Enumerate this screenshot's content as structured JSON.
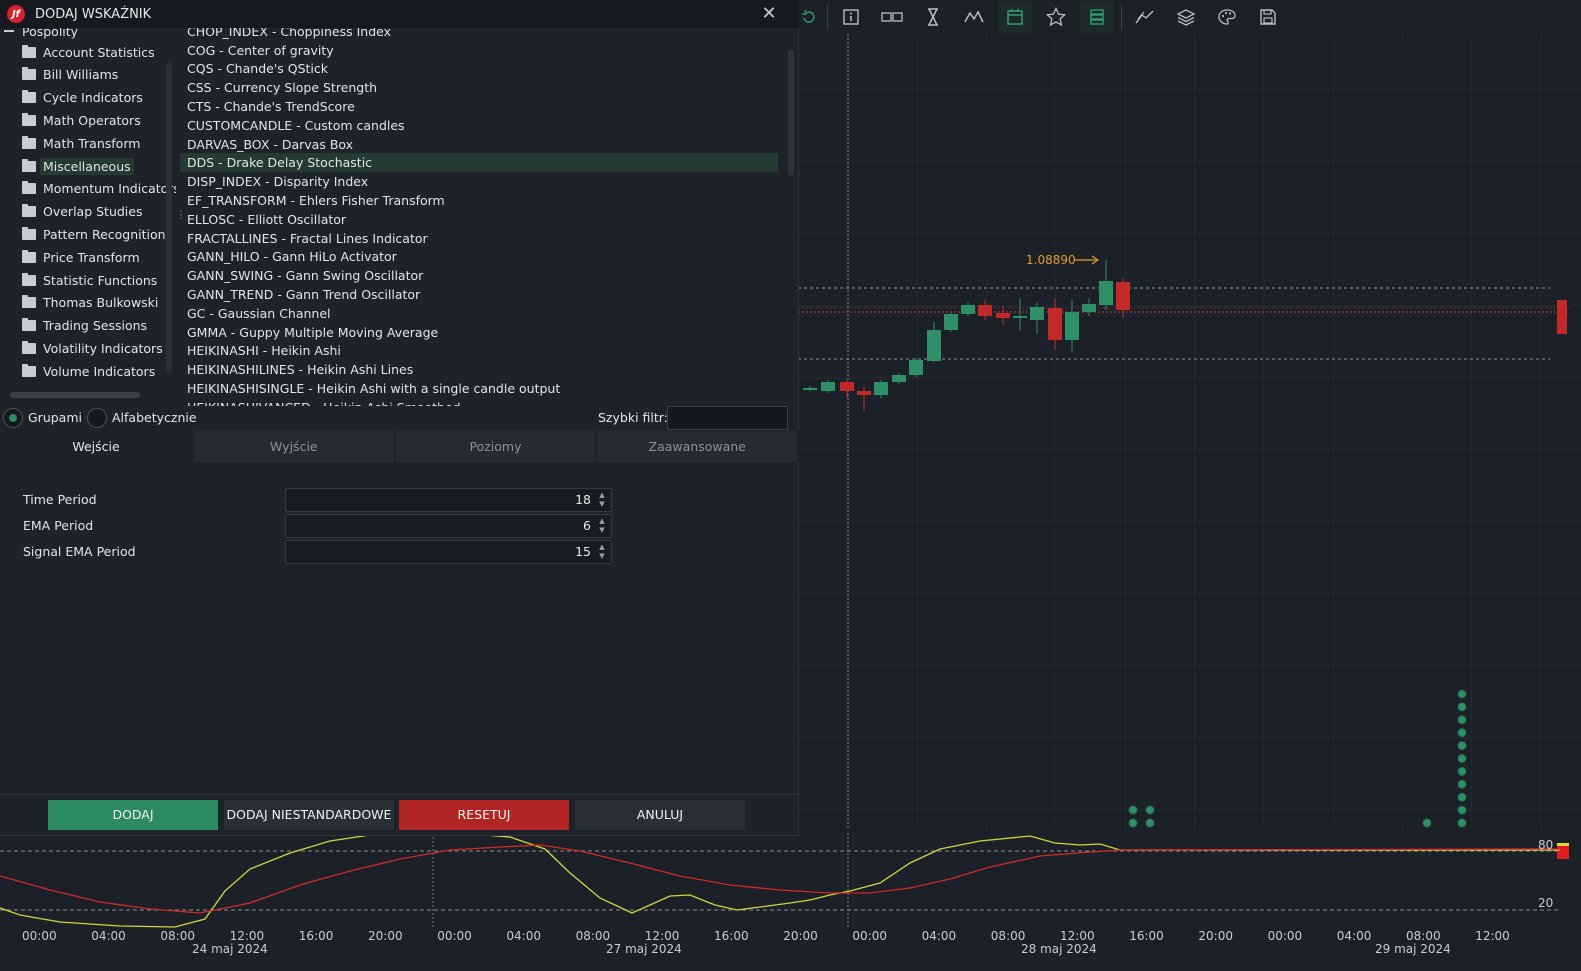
{
  "dialog": {
    "title": "DODAJ WSKAŹNIK",
    "close_icon": "close-icon",
    "groups_partial_top": "Pospolity",
    "groups": [
      "Account Statistics",
      "Bill Williams",
      "Cycle Indicators",
      "Math Operators",
      "Math Transform",
      "Miscellaneous",
      "Momentum Indicators",
      "Overlap Studies",
      "Pattern Recognition",
      "Price Transform",
      "Statistic Functions",
      "Thomas Bulkowski",
      "Trading Sessions",
      "Volatility Indicators",
      "Volume Indicators"
    ],
    "selected_group": "Miscellaneous",
    "indicators_partial_top": "CHOP_INDEX - Choppiness Index",
    "indicators": [
      "COG - Center of gravity",
      "CQS - Chande's QStick",
      "CSS - Currency Slope Strength",
      "CTS - Chande's TrendScore",
      "CUSTOMCANDLE - Custom candles",
      "DARVAS_BOX - Darvas Box",
      "DDS - Drake Delay Stochastic",
      "DISP_INDEX - Disparity Index",
      "EF_TRANSFORM - Ehlers Fisher Transform",
      "ELLOSC - Elliott Oscillator",
      "FRACTALLINES - Fractal Lines Indicator",
      "GANN_HILO - Gann HiLo Activator",
      "GANN_SWING - Gann Swing Oscillator",
      "GANN_TREND - Gann Trend Oscillator",
      "GC - Gaussian Channel",
      "GMMA - Guppy Multiple Moving Average",
      "HEIKINASHI - Heikin Ashi",
      "HEIKINASHILINES - Heikin Ashi Lines",
      "HEIKINASHISINGLE - Heikin Ashi with a single candle output"
    ],
    "indicators_partial_bottom": "HEIKINASHIVANCED - Heikin Ashi Smoothed",
    "selected_indicator": "DDS - Drake Delay Stochastic",
    "radio_groups": "Grupami",
    "radio_alpha": "Alfabetycznie",
    "radio_selected": "Grupami",
    "quick_filter_label": "Szybki filtr:",
    "quick_filter_value": "",
    "tabs": [
      "Wejście",
      "Wyjście",
      "Poziomy",
      "Zaawansowane"
    ],
    "active_tab": "Wejście",
    "params": [
      {
        "label": "Time Period",
        "value": "18"
      },
      {
        "label": "EMA Period",
        "value": "6"
      },
      {
        "label": "Signal EMA Period",
        "value": "15"
      }
    ],
    "buttons": {
      "add": "DODAJ",
      "add_custom": "DODAJ NIESTANDARDOWE",
      "reset": "RESETUJ",
      "cancel": "ANULUJ"
    }
  },
  "toolbar": {
    "icons": [
      "refresh-icon",
      "info-icon",
      "tag-icon",
      "hourglass-icon",
      "indicator-icon",
      "calendar-icon",
      "star-icon",
      "list-icon",
      "trend-tools-icon",
      "layers-icon",
      "palette-icon",
      "save-icon"
    ]
  },
  "chart": {
    "price_marker": "1.08890",
    "osc_level_high": "80",
    "osc_level_low": "20",
    "time_labels": [
      "00:00",
      "04:00",
      "08:00",
      "12:00",
      "16:00",
      "20:00",
      "00:00",
      "04:00",
      "08:00",
      "12:00",
      "16:00",
      "20:00",
      "00:00",
      "04:00",
      "08:00",
      "12:00",
      "16:00",
      "20:00",
      "00:00",
      "04:00",
      "08:00",
      "12:00"
    ],
    "date_labels": [
      "24 maj 2024",
      "27 maj 2024",
      "28 maj 2024",
      "29 maj 2024"
    ],
    "colors": {
      "bull": "#2e8f68",
      "bear": "#c22a2a",
      "signal": "#cfd83a",
      "main": "#d22a2a",
      "dots": "#2e8f68"
    }
  }
}
